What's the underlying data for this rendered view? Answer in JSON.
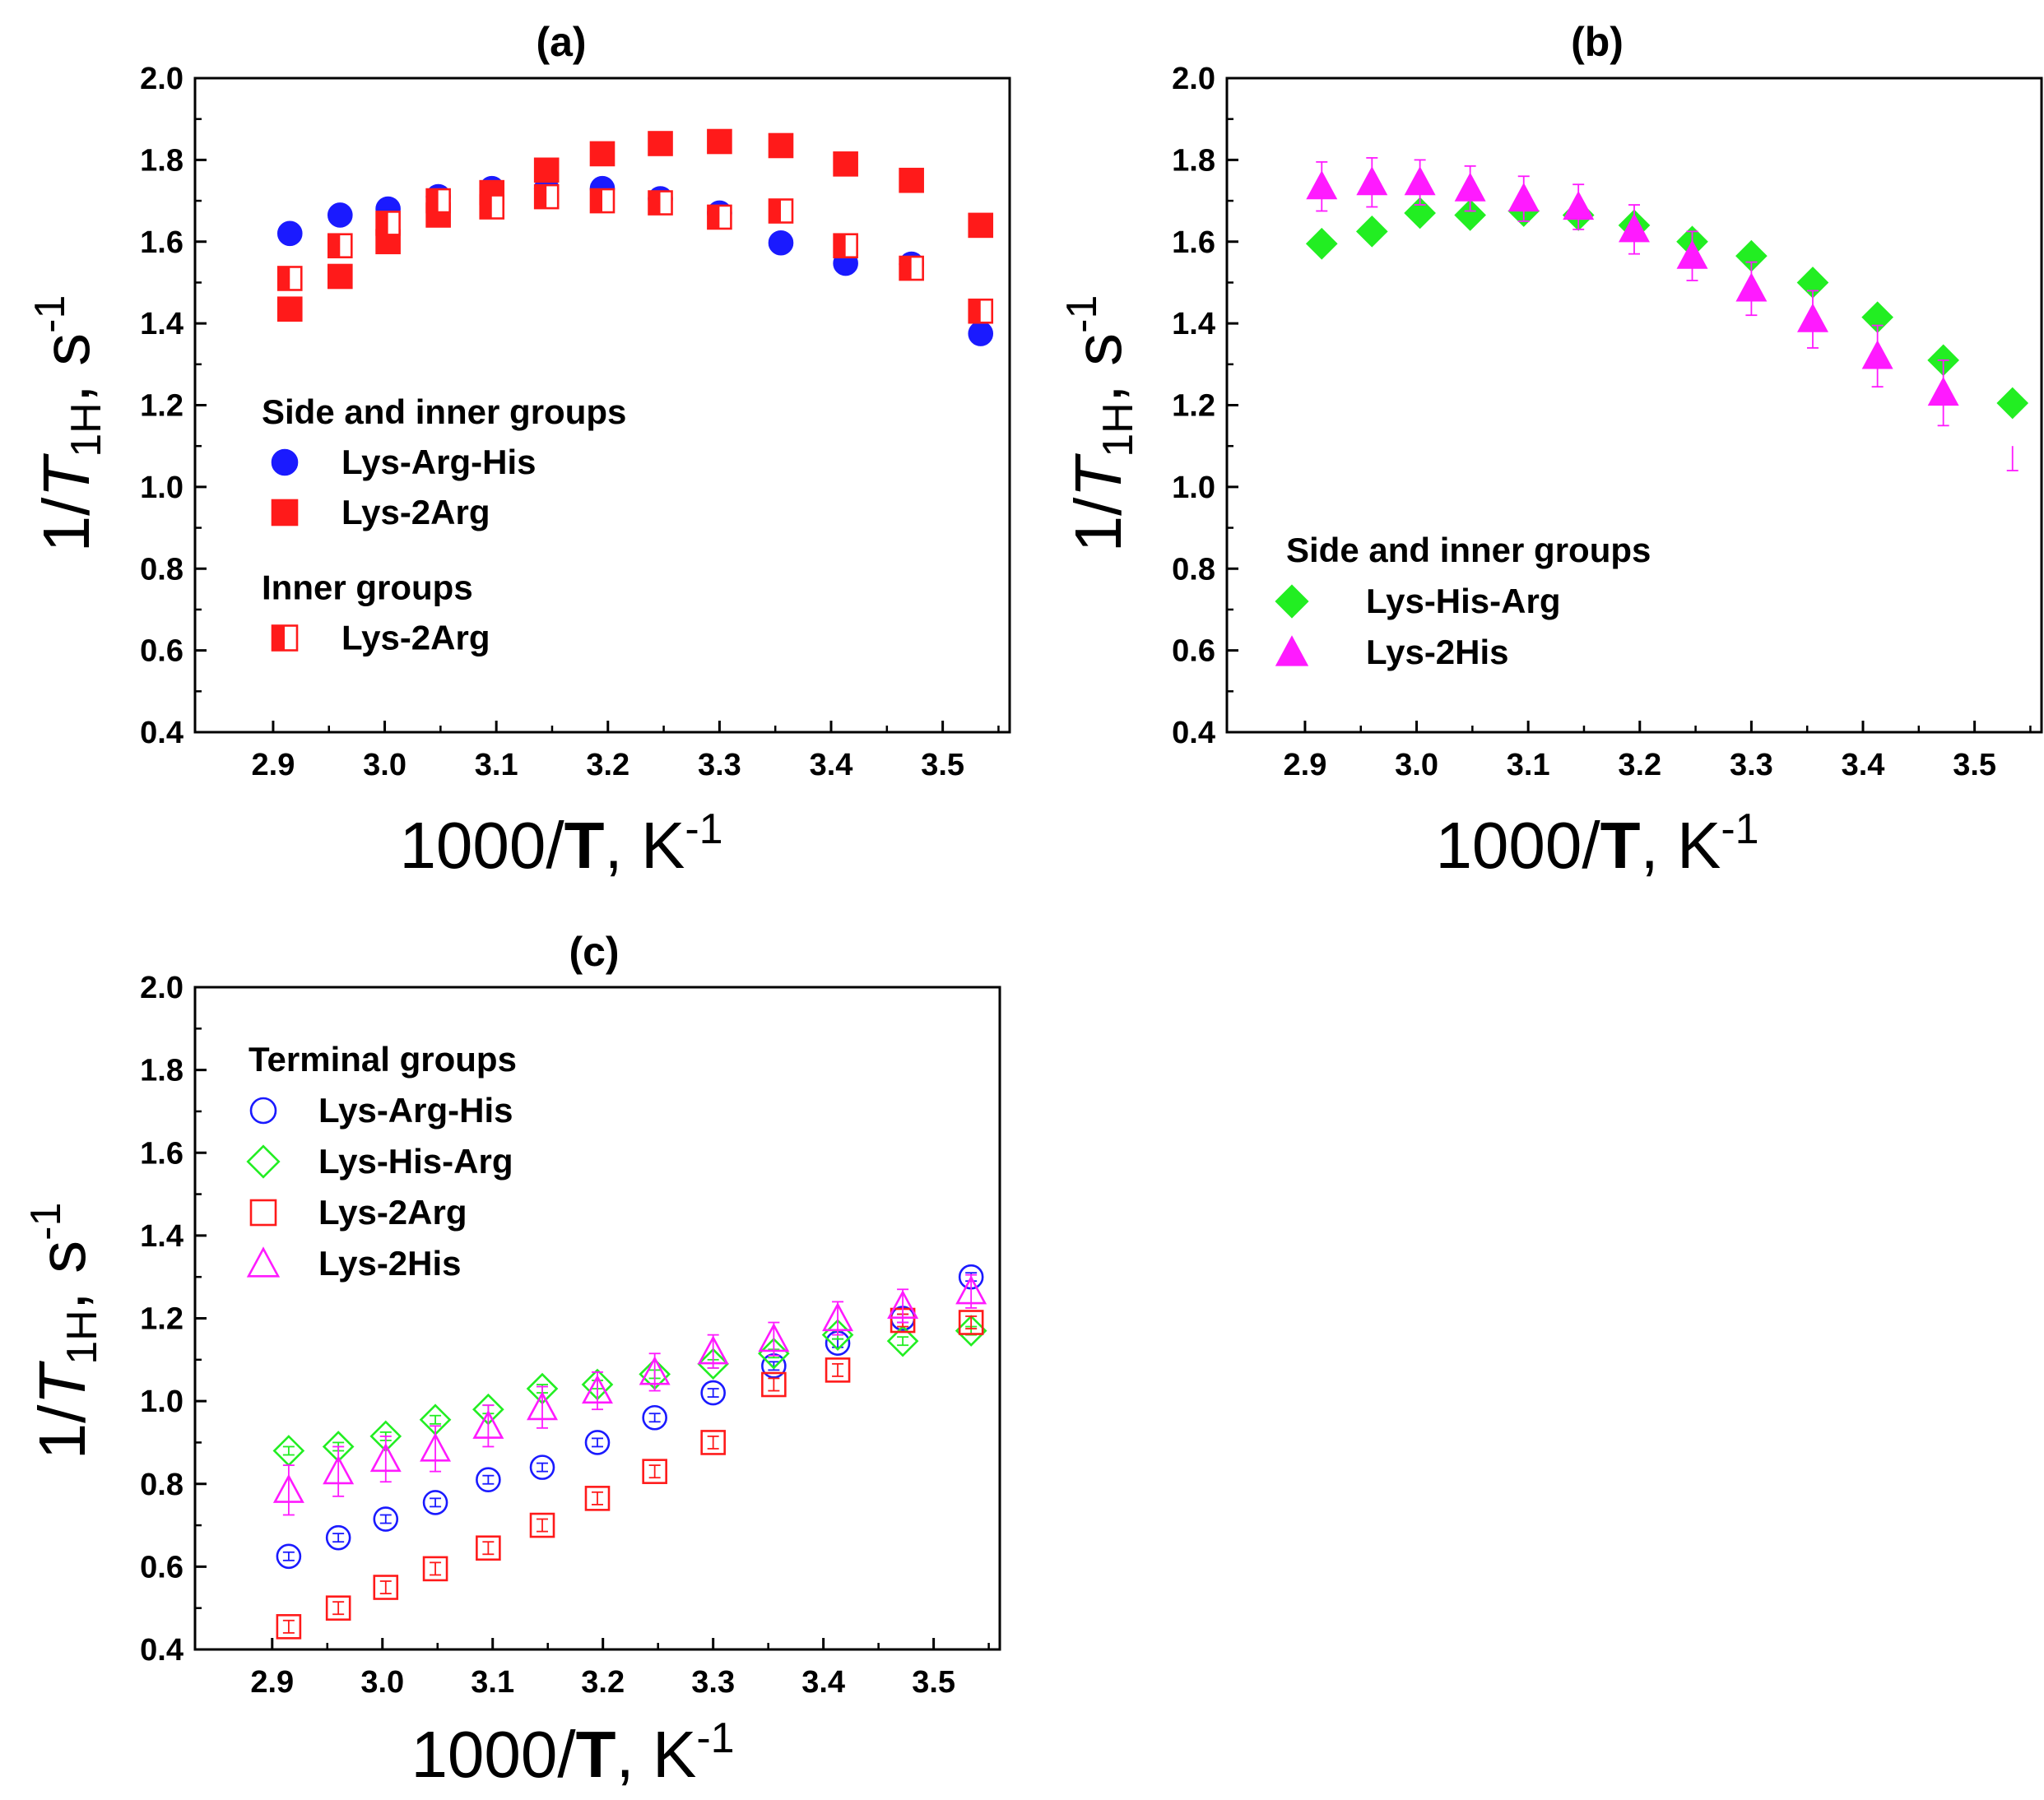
{
  "chart_data": [
    {
      "id": "a",
      "type": "scatter",
      "title": "(a)",
      "xlabel": "1000/T, K-1",
      "ylabel": "1/T1H, s-1",
      "xlim": [
        2.83,
        3.56
      ],
      "ylim": [
        0.4,
        2.0
      ],
      "xticks": [
        "2.9",
        "3.0",
        "3.1",
        "3.2",
        "3.3",
        "3.4",
        "3.5"
      ],
      "yticks": [
        "0.4",
        "0.6",
        "0.8",
        "1.0",
        "1.2",
        "1.4",
        "1.6",
        "1.8",
        "2.0"
      ],
      "grid": false,
      "legend": [
        {
          "kind": "header",
          "text": "Side and inner groups"
        },
        {
          "kind": "entry",
          "series": "lra_side",
          "text": "Lys-Arg-His"
        },
        {
          "kind": "entry",
          "series": "l2a_side",
          "text": "Lys-2Arg"
        },
        {
          "kind": "header",
          "text": "Inner groups"
        },
        {
          "kind": "entry",
          "series": "l2a_inner",
          "text": "Lys-2Arg"
        }
      ],
      "series": [
        {
          "key": "lra_side",
          "name": "Lys-Arg-His",
          "group": "Side and inner groups",
          "marker": "circle",
          "fill": "filled",
          "color": "#1a1aff",
          "x": [
            2.915,
            2.96,
            3.003,
            3.048,
            3.096,
            3.145,
            3.195,
            3.247,
            3.3,
            3.355,
            3.413,
            3.472,
            3.534
          ],
          "y": [
            1.62,
            1.665,
            1.68,
            1.71,
            1.73,
            1.73,
            1.73,
            1.705,
            1.67,
            1.597,
            1.547,
            1.545,
            1.375
          ],
          "err": [
            0,
            0,
            0,
            0,
            0,
            0,
            0,
            0,
            0,
            0,
            0,
            0,
            0
          ]
        },
        {
          "key": "l2a_side",
          "name": "Lys-2Arg",
          "group": "Side and inner groups",
          "marker": "square",
          "fill": "filled",
          "color": "#ff1a1a",
          "x": [
            2.915,
            2.96,
            3.003,
            3.048,
            3.096,
            3.145,
            3.195,
            3.247,
            3.3,
            3.355,
            3.413,
            3.472,
            3.534
          ],
          "y": [
            1.435,
            1.515,
            1.6,
            1.665,
            1.72,
            1.775,
            1.815,
            1.84,
            1.845,
            1.835,
            1.79,
            1.75,
            1.64
          ],
          "err": [
            0,
            0,
            0,
            0,
            0,
            0,
            0,
            0,
            0,
            0,
            0,
            0,
            0
          ]
        },
        {
          "key": "l2a_inner",
          "name": "Lys-2Arg",
          "group": "Inner groups",
          "marker": "square",
          "fill": "half",
          "color": "#ff1a1a",
          "x": [
            2.915,
            2.96,
            3.003,
            3.048,
            3.096,
            3.145,
            3.195,
            3.247,
            3.3,
            3.355,
            3.413,
            3.472,
            3.534
          ],
          "y": [
            1.51,
            1.59,
            1.645,
            1.7,
            1.685,
            1.71,
            1.7,
            1.695,
            1.66,
            1.675,
            1.59,
            1.535,
            1.43
          ],
          "err": [
            0.015,
            0.015,
            0.015,
            0.015,
            0.015,
            0.015,
            0.015,
            0.015,
            0.015,
            0.015,
            0.015,
            0.015,
            0.015
          ]
        }
      ]
    },
    {
      "id": "b",
      "type": "scatter",
      "title": "(b)",
      "xlabel": "1000/T, K-1",
      "ylabel": "1/T1H, s-1",
      "xlim": [
        2.83,
        3.56
      ],
      "ylim": [
        0.4,
        2.0
      ],
      "xticks": [
        "2.9",
        "3.0",
        "3.1",
        "3.2",
        "3.3",
        "3.4",
        "3.5"
      ],
      "yticks": [
        "0.4",
        "0.6",
        "0.8",
        "1.0",
        "1.2",
        "1.4",
        "1.6",
        "1.8",
        "2.0"
      ],
      "grid": false,
      "legend": [
        {
          "kind": "header",
          "text": "Side and inner groups"
        },
        {
          "kind": "entry",
          "series": "lha_side",
          "text": "Lys-His-Arg"
        },
        {
          "kind": "entry",
          "series": "l2h_side",
          "text": "Lys-2His"
        }
      ],
      "series": [
        {
          "key": "lha_side",
          "name": "Lys-His-Arg",
          "group": "Side and inner groups",
          "marker": "diamond",
          "fill": "filled",
          "color": "#22ee22",
          "x": [
            2.915,
            2.96,
            3.003,
            3.048,
            3.096,
            3.145,
            3.195,
            3.247,
            3.3,
            3.355,
            3.413,
            3.472,
            3.534
          ],
          "y": [
            1.595,
            1.625,
            1.67,
            1.665,
            1.675,
            1.665,
            1.64,
            1.6,
            1.565,
            1.5,
            1.415,
            1.31,
            1.205
          ],
          "err": [
            0.01,
            0.01,
            0.01,
            0.01,
            0.01,
            0.01,
            0.01,
            0.01,
            0.01,
            0.01,
            0.01,
            0.01,
            0.01
          ]
        },
        {
          "key": "l2h_side",
          "name": "Lys-2His",
          "group": "Side and inner groups",
          "marker": "triangle",
          "fill": "filled",
          "color": "#ff1aff",
          "x": [
            2.915,
            2.96,
            3.003,
            3.048,
            3.096,
            3.145,
            3.195,
            3.247,
            3.3,
            3.355,
            3.413,
            3.472,
            3.534
          ],
          "y": [
            1.735,
            1.745,
            1.745,
            1.73,
            1.705,
            1.685,
            1.63,
            1.565,
            1.485,
            1.41,
            1.32,
            1.23,
            null
          ],
          "err": [
            0.06,
            0.06,
            0.055,
            0.055,
            0.055,
            0.055,
            0.06,
            0.06,
            0.065,
            0.07,
            0.075,
            0.08,
            null
          ],
          "err_lower": [
            null,
            null,
            null,
            null,
            null,
            null,
            null,
            null,
            null,
            null,
            null,
            null,
            [
              1.04,
              1.1
            ]
          ]
        }
      ]
    },
    {
      "id": "c",
      "type": "scatter",
      "title": "(c)",
      "xlabel": "1000/T, K-1",
      "ylabel": "1/T1H, s-1",
      "xlim": [
        2.83,
        3.56
      ],
      "ylim": [
        0.4,
        2.0
      ],
      "xticks": [
        "2.9",
        "3.0",
        "3.1",
        "3.2",
        "3.3",
        "3.4",
        "3.5"
      ],
      "yticks": [
        "0.4",
        "0.6",
        "0.8",
        "1.0",
        "1.2",
        "1.4",
        "1.6",
        "1.8",
        "2.0"
      ],
      "grid": false,
      "legend": [
        {
          "kind": "header",
          "text": "Terminal groups"
        },
        {
          "kind": "entry",
          "series": "lra_term",
          "text": "Lys-Arg-His"
        },
        {
          "kind": "entry",
          "series": "lha_term",
          "text": "Lys-His-Arg"
        },
        {
          "kind": "entry",
          "series": "l2a_term",
          "text": "Lys-2Arg"
        },
        {
          "kind": "entry",
          "series": "l2h_term",
          "text": "Lys-2His"
        }
      ],
      "series": [
        {
          "key": "lra_term",
          "name": "Lys-Arg-His",
          "group": "Terminal groups",
          "marker": "circle",
          "fill": "open",
          "color": "#1a1aff",
          "x": [
            2.915,
            2.96,
            3.003,
            3.048,
            3.096,
            3.145,
            3.195,
            3.247,
            3.3,
            3.355,
            3.413,
            3.472,
            3.534
          ],
          "y": [
            0.625,
            0.67,
            0.715,
            0.755,
            0.81,
            0.84,
            0.9,
            0.96,
            1.02,
            1.085,
            1.14,
            1.2,
            1.3
          ],
          "err": [
            0.01,
            0.01,
            0.01,
            0.01,
            0.01,
            0.01,
            0.01,
            0.01,
            0.01,
            0.01,
            0.01,
            0.01,
            0.01
          ]
        },
        {
          "key": "lha_term",
          "name": "Lys-His-Arg",
          "group": "Terminal groups",
          "marker": "diamond",
          "fill": "open",
          "color": "#22ee22",
          "x": [
            2.915,
            2.96,
            3.003,
            3.048,
            3.096,
            3.145,
            3.195,
            3.247,
            3.3,
            3.355,
            3.413,
            3.472,
            3.534
          ],
          "y": [
            0.88,
            0.89,
            0.915,
            0.955,
            0.98,
            1.03,
            1.04,
            1.065,
            1.09,
            1.115,
            1.16,
            1.145,
            1.17
          ],
          "err": [
            0.01,
            0.01,
            0.01,
            0.01,
            0.01,
            0.01,
            0.01,
            0.01,
            0.01,
            0.01,
            0.01,
            0.01,
            0.01
          ]
        },
        {
          "key": "l2a_term",
          "name": "Lys-2Arg",
          "group": "Terminal groups",
          "marker": "square",
          "fill": "open",
          "color": "#ff1a1a",
          "x": [
            2.915,
            2.96,
            3.003,
            3.048,
            3.096,
            3.145,
            3.195,
            3.247,
            3.3,
            3.355,
            3.413,
            3.472,
            3.534
          ],
          "y": [
            0.455,
            0.5,
            0.55,
            0.595,
            0.645,
            0.7,
            0.765,
            0.83,
            0.9,
            1.04,
            1.075,
            1.195,
            1.19
          ],
          "err": [
            0.015,
            0.015,
            0.015,
            0.015,
            0.015,
            0.015,
            0.015,
            0.015,
            0.015,
            0.015,
            0.015,
            0.015,
            0.015
          ]
        },
        {
          "key": "l2h_term",
          "name": "Lys-2His",
          "group": "Terminal groups",
          "marker": "triangle",
          "fill": "open",
          "color": "#ff1aff",
          "x": [
            2.915,
            2.96,
            3.003,
            3.048,
            3.096,
            3.145,
            3.195,
            3.247,
            3.3,
            3.355,
            3.413,
            3.472,
            3.534
          ],
          "y": [
            0.785,
            0.83,
            0.86,
            0.885,
            0.94,
            0.985,
            1.025,
            1.07,
            1.12,
            1.15,
            1.2,
            1.23,
            1.265
          ],
          "err": [
            0.06,
            0.06,
            0.055,
            0.055,
            0.05,
            0.05,
            0.045,
            0.045,
            0.04,
            0.04,
            0.04,
            0.04,
            0.04
          ]
        }
      ]
    }
  ]
}
